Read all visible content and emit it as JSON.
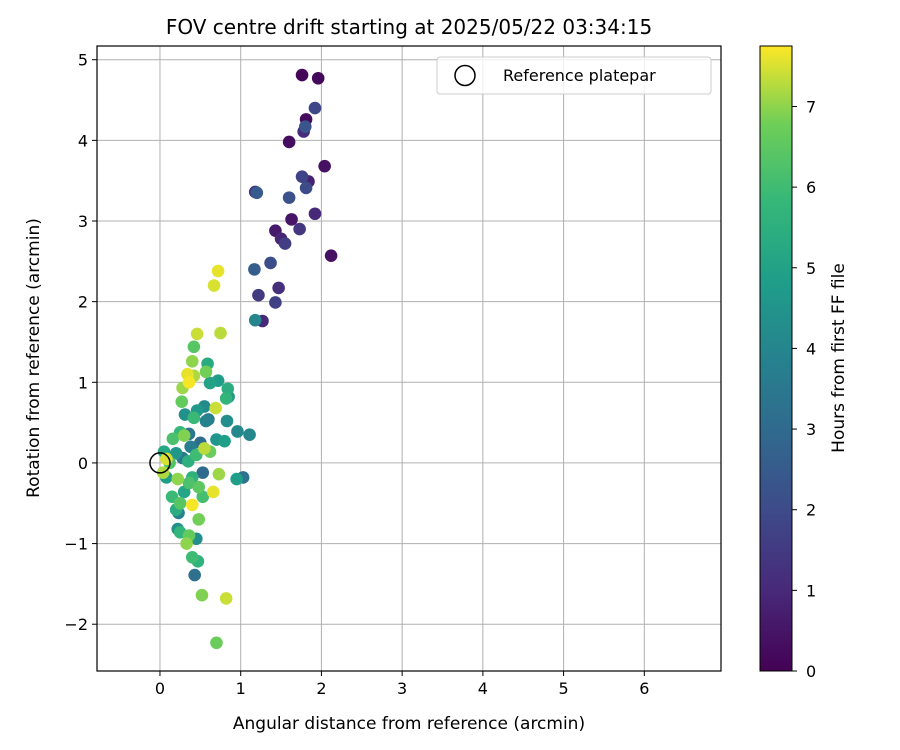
{
  "chart_data": {
    "type": "scatter",
    "title": "FOV centre drift starting at 2025/05/22 03:34:15",
    "xlabel": "Angular distance from reference (arcmin)",
    "ylabel": "Rotation from reference (arcmin)",
    "xlim": [
      -0.78,
      6.95
    ],
    "ylim": [
      -2.58,
      5.17
    ],
    "xticks": [
      0,
      1,
      2,
      3,
      4,
      5,
      6
    ],
    "yticks": [
      -2,
      -1,
      0,
      1,
      2,
      3,
      4,
      5
    ],
    "grid": true,
    "legend": {
      "label": "Reference platepar",
      "placement": "top-right"
    },
    "reference": {
      "x": 0,
      "y": 0
    },
    "colorbar": {
      "label": "Hours from first FF file",
      "colormap": "viridis",
      "range": [
        0,
        7.75
      ],
      "ticks": [
        0,
        1,
        2,
        3,
        4,
        5,
        6,
        7
      ]
    },
    "points": [
      {
        "x": 1.76,
        "y": 4.81,
        "t": 0.1
      },
      {
        "x": 1.96,
        "y": 4.77,
        "t": 0.2
      },
      {
        "x": 1.81,
        "y": 4.26,
        "t": 0.3
      },
      {
        "x": 1.92,
        "y": 4.4,
        "t": 1.9
      },
      {
        "x": 1.78,
        "y": 4.11,
        "t": 1.1
      },
      {
        "x": 1.8,
        "y": 4.17,
        "t": 2.3
      },
      {
        "x": 1.6,
        "y": 3.98,
        "t": 0.3
      },
      {
        "x": 2.04,
        "y": 3.68,
        "t": 0.4
      },
      {
        "x": 1.76,
        "y": 3.55,
        "t": 1.8
      },
      {
        "x": 1.84,
        "y": 3.49,
        "t": 0.8
      },
      {
        "x": 1.81,
        "y": 3.41,
        "t": 2.0
      },
      {
        "x": 1.18,
        "y": 3.36,
        "t": 1.3
      },
      {
        "x": 1.2,
        "y": 3.35,
        "t": 2.5
      },
      {
        "x": 1.6,
        "y": 3.29,
        "t": 2.2
      },
      {
        "x": 1.92,
        "y": 3.09,
        "t": 1.0
      },
      {
        "x": 1.63,
        "y": 3.02,
        "t": 0.5
      },
      {
        "x": 1.73,
        "y": 2.9,
        "t": 1.4
      },
      {
        "x": 1.43,
        "y": 2.88,
        "t": 0.6
      },
      {
        "x": 1.5,
        "y": 2.78,
        "t": 0.9
      },
      {
        "x": 1.55,
        "y": 2.72,
        "t": 1.6
      },
      {
        "x": 2.12,
        "y": 2.57,
        "t": 0.4
      },
      {
        "x": 1.37,
        "y": 2.48,
        "t": 2.1
      },
      {
        "x": 1.17,
        "y": 2.4,
        "t": 2.6
      },
      {
        "x": 1.47,
        "y": 2.17,
        "t": 1.2
      },
      {
        "x": 1.22,
        "y": 2.08,
        "t": 1.5
      },
      {
        "x": 1.43,
        "y": 1.99,
        "t": 1.7
      },
      {
        "x": 1.27,
        "y": 1.76,
        "t": 1.0
      },
      {
        "x": 1.18,
        "y": 1.77,
        "t": 4.0
      },
      {
        "x": 0.72,
        "y": 2.38,
        "t": 7.6
      },
      {
        "x": 0.67,
        "y": 2.2,
        "t": 7.5
      },
      {
        "x": 0.46,
        "y": 1.6,
        "t": 7.4
      },
      {
        "x": 0.75,
        "y": 1.61,
        "t": 7.3
      },
      {
        "x": 0.42,
        "y": 1.44,
        "t": 6.4
      },
      {
        "x": 0.4,
        "y": 1.26,
        "t": 7.0
      },
      {
        "x": 0.59,
        "y": 1.23,
        "t": 5.3
      },
      {
        "x": 0.57,
        "y": 1.13,
        "t": 6.8
      },
      {
        "x": 0.34,
        "y": 1.1,
        "t": 7.6
      },
      {
        "x": 0.42,
        "y": 1.08,
        "t": 7.2
      },
      {
        "x": 0.36,
        "y": 1.0,
        "t": 7.7
      },
      {
        "x": 0.72,
        "y": 1.02,
        "t": 4.8
      },
      {
        "x": 0.62,
        "y": 0.99,
        "t": 5.0
      },
      {
        "x": 0.28,
        "y": 0.93,
        "t": 7.1
      },
      {
        "x": 0.84,
        "y": 0.92,
        "t": 5.4
      },
      {
        "x": 0.85,
        "y": 0.82,
        "t": 4.6
      },
      {
        "x": 0.82,
        "y": 0.8,
        "t": 5.7
      },
      {
        "x": 0.27,
        "y": 0.76,
        "t": 6.6
      },
      {
        "x": 0.55,
        "y": 0.7,
        "t": 4.2
      },
      {
        "x": 0.69,
        "y": 0.68,
        "t": 7.4
      },
      {
        "x": 0.46,
        "y": 0.65,
        "t": 4.7
      },
      {
        "x": 0.31,
        "y": 0.6,
        "t": 4.4
      },
      {
        "x": 0.42,
        "y": 0.56,
        "t": 5.9
      },
      {
        "x": 0.6,
        "y": 0.54,
        "t": 3.6
      },
      {
        "x": 0.57,
        "y": 0.52,
        "t": 3.9
      },
      {
        "x": 0.83,
        "y": 0.52,
        "t": 4.3
      },
      {
        "x": 0.96,
        "y": 0.39,
        "t": 4.1
      },
      {
        "x": 1.11,
        "y": 0.35,
        "t": 4.0
      },
      {
        "x": 0.25,
        "y": 0.38,
        "t": 5.8
      },
      {
        "x": 0.36,
        "y": 0.36,
        "t": 3.4
      },
      {
        "x": 0.3,
        "y": 0.34,
        "t": 6.9
      },
      {
        "x": 0.16,
        "y": 0.3,
        "t": 6.2
      },
      {
        "x": 0.7,
        "y": 0.29,
        "t": 4.5
      },
      {
        "x": 0.8,
        "y": 0.27,
        "t": 4.9
      },
      {
        "x": 0.5,
        "y": 0.25,
        "t": 3.1
      },
      {
        "x": 0.38,
        "y": 0.2,
        "t": 3.7
      },
      {
        "x": 0.55,
        "y": 0.18,
        "t": 7.3
      },
      {
        "x": 0.62,
        "y": 0.14,
        "t": 6.7
      },
      {
        "x": 0.2,
        "y": 0.12,
        "t": 4.6
      },
      {
        "x": 0.05,
        "y": 0.14,
        "t": 5.2
      },
      {
        "x": 0.45,
        "y": 0.1,
        "t": 6.0
      },
      {
        "x": 0.08,
        "y": 0.05,
        "t": 7.5
      },
      {
        "x": 0.28,
        "y": 0.06,
        "t": 3.5
      },
      {
        "x": 0.35,
        "y": 0.02,
        "t": 5.5
      },
      {
        "x": 0.12,
        "y": 0.0,
        "t": 6.3
      },
      {
        "x": 0.04,
        "y": -0.12,
        "t": 7.2
      },
      {
        "x": 0.08,
        "y": -0.18,
        "t": 4.8
      },
      {
        "x": 0.22,
        "y": -0.2,
        "t": 7.0
      },
      {
        "x": 0.4,
        "y": -0.18,
        "t": 5.6
      },
      {
        "x": 0.53,
        "y": -0.12,
        "t": 3.0
      },
      {
        "x": 0.73,
        "y": -0.14,
        "t": 7.1
      },
      {
        "x": 0.95,
        "y": -0.2,
        "t": 4.9
      },
      {
        "x": 1.03,
        "y": -0.18,
        "t": 3.3
      },
      {
        "x": 0.36,
        "y": -0.25,
        "t": 6.2
      },
      {
        "x": 0.48,
        "y": -0.3,
        "t": 6.5
      },
      {
        "x": 0.66,
        "y": -0.36,
        "t": 7.6
      },
      {
        "x": 0.3,
        "y": -0.36,
        "t": 5.1
      },
      {
        "x": 0.53,
        "y": -0.42,
        "t": 6.1
      },
      {
        "x": 0.15,
        "y": -0.42,
        "t": 5.9
      },
      {
        "x": 0.25,
        "y": -0.5,
        "t": 6.4
      },
      {
        "x": 0.4,
        "y": -0.52,
        "t": 7.7
      },
      {
        "x": 0.2,
        "y": -0.58,
        "t": 5.4
      },
      {
        "x": 0.23,
        "y": -0.62,
        "t": 3.8
      },
      {
        "x": 0.48,
        "y": -0.7,
        "t": 6.8
      },
      {
        "x": 0.22,
        "y": -0.82,
        "t": 4.4
      },
      {
        "x": 0.25,
        "y": -0.86,
        "t": 5.7
      },
      {
        "x": 0.36,
        "y": -0.9,
        "t": 6.6
      },
      {
        "x": 0.45,
        "y": -0.94,
        "t": 4.3
      },
      {
        "x": 0.33,
        "y": -1.0,
        "t": 7.0
      },
      {
        "x": 0.4,
        "y": -1.17,
        "t": 6.0
      },
      {
        "x": 0.47,
        "y": -1.22,
        "t": 5.6
      },
      {
        "x": 0.43,
        "y": -1.39,
        "t": 3.2
      },
      {
        "x": 0.52,
        "y": -1.64,
        "t": 6.9
      },
      {
        "x": 0.82,
        "y": -1.68,
        "t": 7.4
      },
      {
        "x": 0.7,
        "y": -2.23,
        "t": 6.7
      }
    ]
  }
}
